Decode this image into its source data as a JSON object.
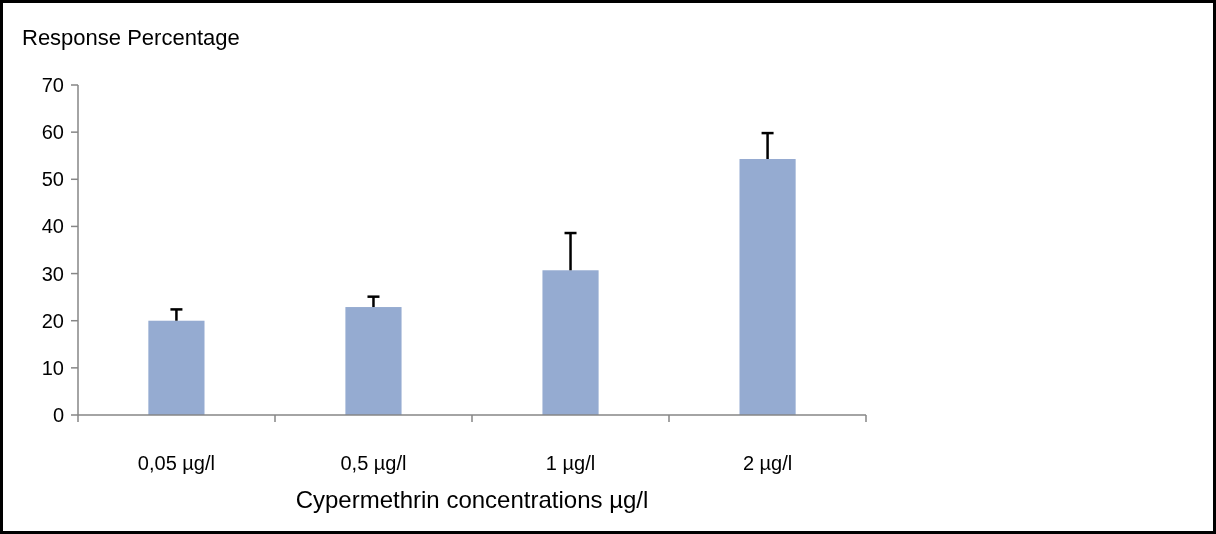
{
  "chart_data": {
    "type": "bar",
    "ylabel": "Response Percentage",
    "xlabel": "Cypermethrin concentrations µg/l",
    "categories": [
      "0,05 µg/l",
      "0,5 µg/l",
      "1 µg/l",
      "2 µg/l"
    ],
    "values": [
      20.0,
      22.9,
      30.7,
      54.3
    ],
    "errors": [
      [
        20.0,
        22.4
      ],
      [
        22.9,
        25.1
      ],
      [
        30.7,
        38.6
      ],
      [
        54.3,
        59.8
      ]
    ],
    "color": "#95abd1",
    "ylim": [
      0,
      70
    ],
    "yticks": [
      0,
      10,
      20,
      30,
      40,
      50,
      60,
      70
    ],
    "grid": false
  }
}
